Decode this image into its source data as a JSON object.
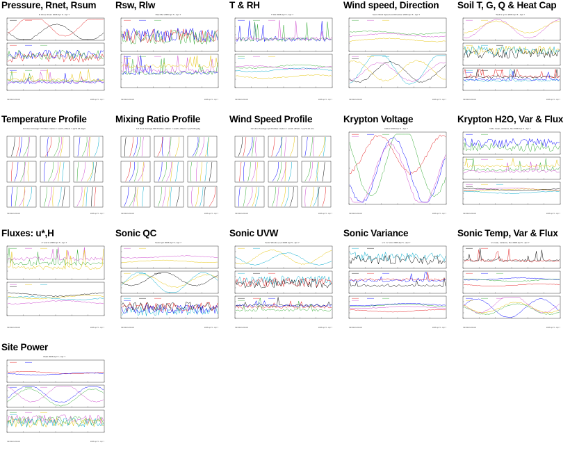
{
  "plots": [
    {
      "title": "Pressure, Rnet, Rsum",
      "kind": "stack3",
      "plot_title": "P, Rnet, Rsum 2006 Apr 5 - Apr 7"
    },
    {
      "title": "Rsw, Rlw",
      "kind": "stack2",
      "plot_title": "Rsw Rlw 2006 Apr 5 - Apr 7"
    },
    {
      "title": "T & RH",
      "kind": "stack2",
      "plot_title": "T RH 2006 Apr 5 - Apr 7"
    },
    {
      "title": "Wind speed, Direction",
      "kind": "stack2",
      "plot_title": "Sonic Wind Speed and Direction 2006 Apr 5 - Apr 7"
    },
    {
      "title": "Soil T, G, Q & Heat Cap",
      "kind": "stack3",
      "plot_title": "Tsoil G Q Cs 2006 Apr 5 - Apr 7"
    },
    {
      "title": "Temperature Profile",
      "kind": "grid",
      "plot_title": "1/2 Hour Average T Profiles: station = south; offsets = (n)*0.36 degC"
    },
    {
      "title": "Mixing Ratio Profile",
      "kind": "grid",
      "plot_title": "1/2 Hour Average MR Profiles: station = south; offsets = (n)*0.08 g/kg"
    },
    {
      "title": "Wind Speed Profile",
      "kind": "grid",
      "plot_title": "1/2 Hour Average spd Profiles: station = south; offsets = (n)*0.24 m/s"
    },
    {
      "title": "Krypton Voltage",
      "kind": "single",
      "plot_title": "kh2oV 2006 Apr 5 - Apr 7"
    },
    {
      "title": "Krypton H2O, Var & Flux",
      "kind": "stack3",
      "plot_title": "kh2o mean, variance, flux 2006 Apr 5 - Apr 7"
    },
    {
      "title": "Fluxes: u*,H",
      "kind": "stack2",
      "plot_title": "u* and H 2006 Apr 5 - Apr 7"
    },
    {
      "title": "Sonic QC",
      "kind": "stack3",
      "plot_title": "Sonic QC 2006 Apr 5 - Apr 7"
    },
    {
      "title": "Sonic UVW",
      "kind": "stack3",
      "plot_title": "Sonic Winds u,v,w 2006 Apr 5 - Apr 7"
    },
    {
      "title": "Sonic Variance",
      "kind": "stack3",
      "plot_title": "u'u' v'v' w'w' 2006 Apr 5 - Apr 7"
    },
    {
      "title": "Sonic Temp, Var & Flux",
      "kind": "stack3",
      "plot_title": "tc mean, variance, flux 2006 Apr 5 - Apr 7"
    },
    {
      "title": "Site Power",
      "kind": "stack3",
      "plot_title": "Vbatt 2006 Apr 5 - Apr 7"
    }
  ],
  "footer_left": "ISFF/EOL/NCAR",
  "footer_right": "2006 Apr 5 - Apr 7",
  "colors": [
    "#000000",
    "#e41a1c",
    "#0000ff",
    "#33aa33",
    "#cc44cc",
    "#e6c200",
    "#00aacc"
  ]
}
